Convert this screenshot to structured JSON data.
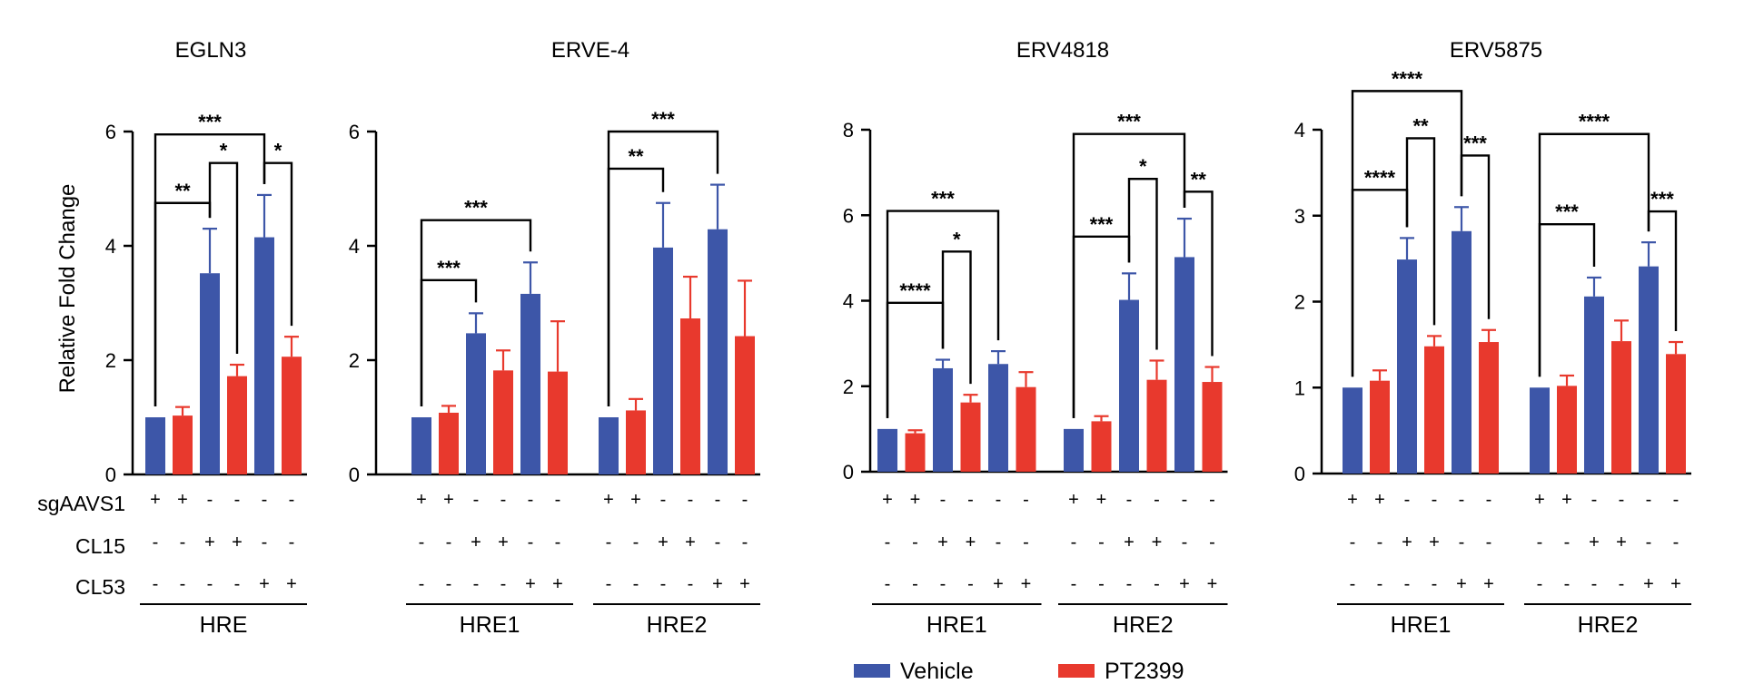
{
  "colors": {
    "vehicle": "#3d56a8",
    "pt2399": "#e8392d",
    "axis": "#000000"
  },
  "legend": {
    "vehicle": "Vehicle",
    "pt2399": "PT2399"
  },
  "ylabel": "Relative Fold Change",
  "row_labels": [
    "sgAAVS1",
    "CL15",
    "CL53"
  ],
  "chart_data": [
    {
      "type": "bar",
      "title": "EGLN3",
      "ylabel": "Relative Fold Change",
      "ylim": [
        0,
        6
      ],
      "yticks": [
        "0",
        "2",
        "4",
        "6"
      ],
      "groups": [
        {
          "label": "HRE",
          "pairs": [
            {
              "values": [
                1.0,
                1.03
              ],
              "errors": [
                0.0,
                0.15
              ],
              "signs": [
                [
                  "+",
                  "-",
                  "-"
                ],
                [
                  "+",
                  "-",
                  "-"
                ]
              ]
            },
            {
              "values": [
                3.52,
                1.72
              ],
              "errors": [
                0.78,
                0.2
              ],
              "signs": [
                [
                  "-",
                  "+",
                  "-"
                ],
                [
                  "-",
                  "+",
                  "-"
                ]
              ]
            },
            {
              "values": [
                4.15,
                2.06
              ],
              "errors": [
                0.74,
                0.35
              ],
              "signs": [
                [
                  "-",
                  "-",
                  "+"
                ],
                [
                  "-",
                  "-",
                  "+"
                ]
              ]
            }
          ]
        }
      ],
      "annotations": [
        {
          "group": 0,
          "from": 0,
          "to": 2,
          "label": "**",
          "y": 4.75
        },
        {
          "group": 0,
          "from": 0,
          "to": 4,
          "label": "***",
          "y": 5.95
        },
        {
          "group": 0,
          "from": 2,
          "to": 3,
          "label": "*",
          "y": 5.45
        },
        {
          "group": 0,
          "from": 4,
          "to": 5,
          "label": "*",
          "y": 5.45
        }
      ]
    },
    {
      "type": "bar",
      "title": "ERVE-4",
      "ylim": [
        0,
        6
      ],
      "yticks": [
        "0",
        "2",
        "4",
        "6"
      ],
      "groups": [
        {
          "label": "HRE1",
          "pairs": [
            {
              "values": [
                1.0,
                1.08
              ],
              "errors": [
                0.0,
                0.12
              ],
              "signs": [
                [
                  "+",
                  "-",
                  "-"
                ],
                [
                  "+",
                  "-",
                  "-"
                ]
              ]
            },
            {
              "values": [
                2.47,
                1.82
              ],
              "errors": [
                0.35,
                0.35
              ],
              "signs": [
                [
                  "-",
                  "+",
                  "-"
                ],
                [
                  "-",
                  "+",
                  "-"
                ]
              ]
            },
            {
              "values": [
                3.16,
                1.8
              ],
              "errors": [
                0.55,
                0.88
              ],
              "signs": [
                [
                  "-",
                  "-",
                  "+"
                ],
                [
                  "-",
                  "-",
                  "+"
                ]
              ]
            }
          ]
        },
        {
          "label": "HRE2",
          "pairs": [
            {
              "values": [
                1.0,
                1.12
              ],
              "errors": [
                0.0,
                0.2
              ],
              "signs": [
                [
                  "+",
                  "-",
                  "-"
                ],
                [
                  "+",
                  "-",
                  "-"
                ]
              ]
            },
            {
              "values": [
                3.97,
                2.73
              ],
              "errors": [
                0.78,
                0.73
              ],
              "signs": [
                [
                  "-",
                  "+",
                  "-"
                ],
                [
                  "-",
                  "+",
                  "-"
                ]
              ]
            },
            {
              "values": [
                4.29,
                2.42
              ],
              "errors": [
                0.78,
                0.97
              ],
              "signs": [
                [
                  "-",
                  "-",
                  "+"
                ],
                [
                  "-",
                  "-",
                  "+"
                ]
              ]
            }
          ]
        }
      ],
      "annotations": [
        {
          "group": 0,
          "from": 0,
          "to": 2,
          "label": "***",
          "y": 3.4
        },
        {
          "group": 0,
          "from": 0,
          "to": 4,
          "label": "***",
          "y": 4.45
        },
        {
          "group": 1,
          "from": 0,
          "to": 2,
          "label": "**",
          "y": 5.35
        },
        {
          "group": 1,
          "from": 0,
          "to": 4,
          "label": "***",
          "y": 6.0
        }
      ]
    },
    {
      "type": "bar",
      "title": "ERV4818",
      "ylim": [
        0,
        8
      ],
      "yticks": [
        "0",
        "2",
        "4",
        "6",
        "8"
      ],
      "groups": [
        {
          "label": "HRE1",
          "pairs": [
            {
              "values": [
                1.0,
                0.9
              ],
              "errors": [
                0.0,
                0.07
              ],
              "signs": [
                [
                  "+",
                  "-",
                  "-"
                ],
                [
                  "+",
                  "-",
                  "-"
                ]
              ]
            },
            {
              "values": [
                2.42,
                1.62
              ],
              "errors": [
                0.2,
                0.18
              ],
              "signs": [
                [
                  "-",
                  "+",
                  "-"
                ],
                [
                  "-",
                  "+",
                  "-"
                ]
              ]
            },
            {
              "values": [
                2.52,
                1.98
              ],
              "errors": [
                0.3,
                0.35
              ],
              "signs": [
                [
                  "-",
                  "-",
                  "+"
                ],
                [
                  "-",
                  "-",
                  "+"
                ]
              ]
            }
          ]
        },
        {
          "label": "HRE2",
          "pairs": [
            {
              "values": [
                1.0,
                1.18
              ],
              "errors": [
                0.0,
                0.12
              ],
              "signs": [
                [
                  "+",
                  "-",
                  "-"
                ],
                [
                  "+",
                  "-",
                  "-"
                ]
              ]
            },
            {
              "values": [
                4.02,
                2.15
              ],
              "errors": [
                0.62,
                0.45
              ],
              "signs": [
                [
                  "-",
                  "+",
                  "-"
                ],
                [
                  "-",
                  "+",
                  "-"
                ]
              ]
            },
            {
              "values": [
                5.02,
                2.1
              ],
              "errors": [
                0.9,
                0.35
              ],
              "signs": [
                [
                  "-",
                  "-",
                  "+"
                ],
                [
                  "-",
                  "-",
                  "+"
                ]
              ]
            }
          ]
        }
      ],
      "annotations": [
        {
          "group": 0,
          "from": 0,
          "to": 2,
          "label": "****",
          "y": 3.95
        },
        {
          "group": 0,
          "from": 0,
          "to": 4,
          "label": "***",
          "y": 6.1
        },
        {
          "group": 0,
          "from": 2,
          "to": 3,
          "label": "*",
          "y": 5.15
        },
        {
          "group": 1,
          "from": 0,
          "to": 2,
          "label": "***",
          "y": 5.5
        },
        {
          "group": 1,
          "from": 0,
          "to": 4,
          "label": "***",
          "y": 7.9
        },
        {
          "group": 1,
          "from": 2,
          "to": 3,
          "label": "*",
          "y": 6.85
        },
        {
          "group": 1,
          "from": 4,
          "to": 5,
          "label": "**",
          "y": 6.55
        }
      ]
    },
    {
      "type": "bar",
      "title": "ERV5875",
      "ylim": [
        0,
        4
      ],
      "yticks": [
        "0",
        "1",
        "2",
        "3",
        "4"
      ],
      "groups": [
        {
          "label": "HRE1",
          "pairs": [
            {
              "values": [
                1.0,
                1.08
              ],
              "errors": [
                0.0,
                0.12
              ],
              "signs": [
                [
                  "+",
                  "-",
                  "-"
                ],
                [
                  "+",
                  "-",
                  "-"
                ]
              ]
            },
            {
              "values": [
                2.49,
                1.48
              ],
              "errors": [
                0.25,
                0.12
              ],
              "signs": [
                [
                  "-",
                  "+",
                  "-"
                ],
                [
                  "-",
                  "+",
                  "-"
                ]
              ]
            },
            {
              "values": [
                2.82,
                1.53
              ],
              "errors": [
                0.28,
                0.14
              ],
              "signs": [
                [
                  "-",
                  "-",
                  "+"
                ],
                [
                  "-",
                  "-",
                  "+"
                ]
              ]
            }
          ]
        },
        {
          "label": "HRE2",
          "pairs": [
            {
              "values": [
                1.0,
                1.02
              ],
              "errors": [
                0.0,
                0.12
              ],
              "signs": [
                [
                  "+",
                  "-",
                  "-"
                ],
                [
                  "+",
                  "-",
                  "-"
                ]
              ]
            },
            {
              "values": [
                2.06,
                1.54
              ],
              "errors": [
                0.22,
                0.24
              ],
              "signs": [
                [
                  "-",
                  "+",
                  "-"
                ],
                [
                  "-",
                  "+",
                  "-"
                ]
              ]
            },
            {
              "values": [
                2.41,
                1.39
              ],
              "errors": [
                0.28,
                0.14
              ],
              "signs": [
                [
                  "-",
                  "-",
                  "+"
                ],
                [
                  "-",
                  "-",
                  "+"
                ]
              ]
            }
          ]
        }
      ],
      "annotations": [
        {
          "group": 0,
          "from": 0,
          "to": 2,
          "label": "****",
          "y": 3.3
        },
        {
          "group": 0,
          "from": 0,
          "to": 4,
          "label": "****",
          "y": 4.45
        },
        {
          "group": 0,
          "from": 2,
          "to": 3,
          "label": "**",
          "y": 3.9
        },
        {
          "group": 0,
          "from": 4,
          "to": 5,
          "label": "***",
          "y": 3.7
        },
        {
          "group": 1,
          "from": 0,
          "to": 2,
          "label": "***",
          "y": 2.9
        },
        {
          "group": 1,
          "from": 0,
          "to": 4,
          "label": "****",
          "y": 3.95
        },
        {
          "group": 1,
          "from": 4,
          "to": 5,
          "label": "***",
          "y": 3.05
        }
      ]
    }
  ]
}
